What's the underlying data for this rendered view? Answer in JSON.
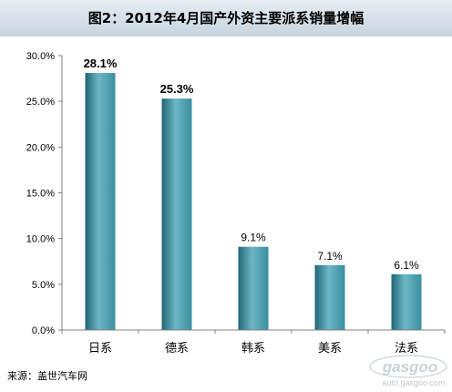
{
  "title": "图2：2012年4月国产外资主要派系销量增幅",
  "source": "来源：盖世汽车网",
  "watermark": {
    "brand": "gasgoo",
    "url": "auto.gasgoo.com"
  },
  "colors": {
    "bar": "#3a8fa0",
    "bar_dark": "#1f6574",
    "bar_light": "#6cb7c4",
    "axis": "#808080",
    "title_bg_top": "#e6edf3",
    "title_bg_bottom": "#c7d4df"
  },
  "chart_data": {
    "type": "bar",
    "categories": [
      "日系",
      "德系",
      "韩系",
      "美系",
      "法系"
    ],
    "values": [
      28.1,
      25.3,
      9.1,
      7.1,
      6.1
    ],
    "data_labels": [
      "28.1%",
      "25.3%",
      "9.1%",
      "7.1%",
      "6.1%"
    ],
    "bold_labels": [
      true,
      true,
      false,
      false,
      false
    ],
    "y_ticks": [
      "0.0%",
      "5.0%",
      "10.0%",
      "15.0%",
      "20.0%",
      "25.0%",
      "30.0%"
    ],
    "ylim": [
      0,
      30
    ],
    "grid": false,
    "legend": "none"
  }
}
